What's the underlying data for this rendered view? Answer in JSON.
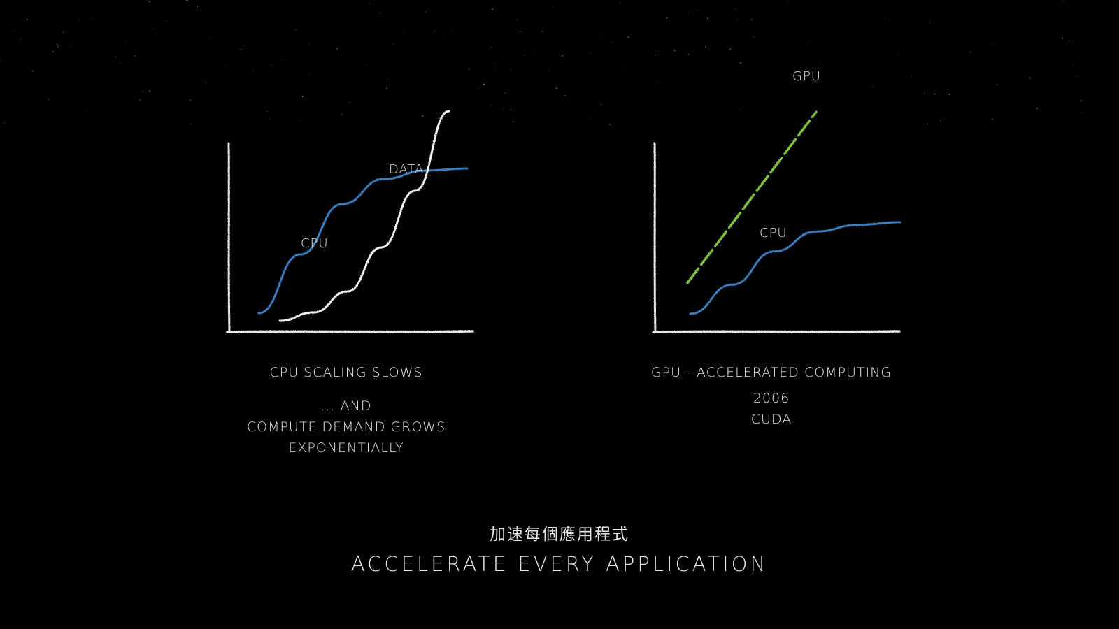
{
  "colors": {
    "background": "#000000",
    "chalk": "#e6e6e6",
    "cpu_curve": "#3a7fc0",
    "gpu_curve": "#7fc241",
    "data_curve": "#f2f2f2"
  },
  "left_panel": {
    "data_label": "DATA",
    "cpu_label": "CPU",
    "caption": "CPU SCALING SLOWS",
    "subcaption_lines": [
      "... AND",
      "COMPUTE DEMAND GROWS",
      "EXPONENTIALLY"
    ]
  },
  "right_panel": {
    "gpu_label": "GPU",
    "cpu_label": "CPU",
    "caption": "GPU - ACCELERATED COMPUTING",
    "year": "2006",
    "platform": "CUDA"
  },
  "footer": {
    "title_zh": "加速每個應用程式",
    "title_en": "ACCELERATE EVERY APPLICATION"
  },
  "chart_data": [
    {
      "type": "line",
      "title": "",
      "xlabel": "",
      "ylabel": "",
      "grid": false,
      "x": [
        0,
        0.2,
        0.4,
        0.6,
        0.8,
        1.0
      ],
      "series": [
        {
          "name": "DATA",
          "values": [
            0,
            0.04,
            0.14,
            0.35,
            0.62,
            1.0
          ]
        },
        {
          "name": "CPU",
          "values": [
            0,
            0.28,
            0.52,
            0.64,
            0.68,
            0.69
          ]
        }
      ]
    },
    {
      "type": "line",
      "title": "",
      "xlabel": "",
      "ylabel": "",
      "grid": false,
      "x": [
        0,
        0.2,
        0.4,
        0.6,
        0.8,
        1.0
      ],
      "series": [
        {
          "name": "GPU",
          "values": [
            0.15,
            0.48,
            0.81,
            1.14,
            1.47,
            1.8
          ]
        },
        {
          "name": "CPU",
          "values": [
            0,
            0.22,
            0.47,
            0.62,
            0.67,
            0.69
          ]
        }
      ]
    }
  ]
}
